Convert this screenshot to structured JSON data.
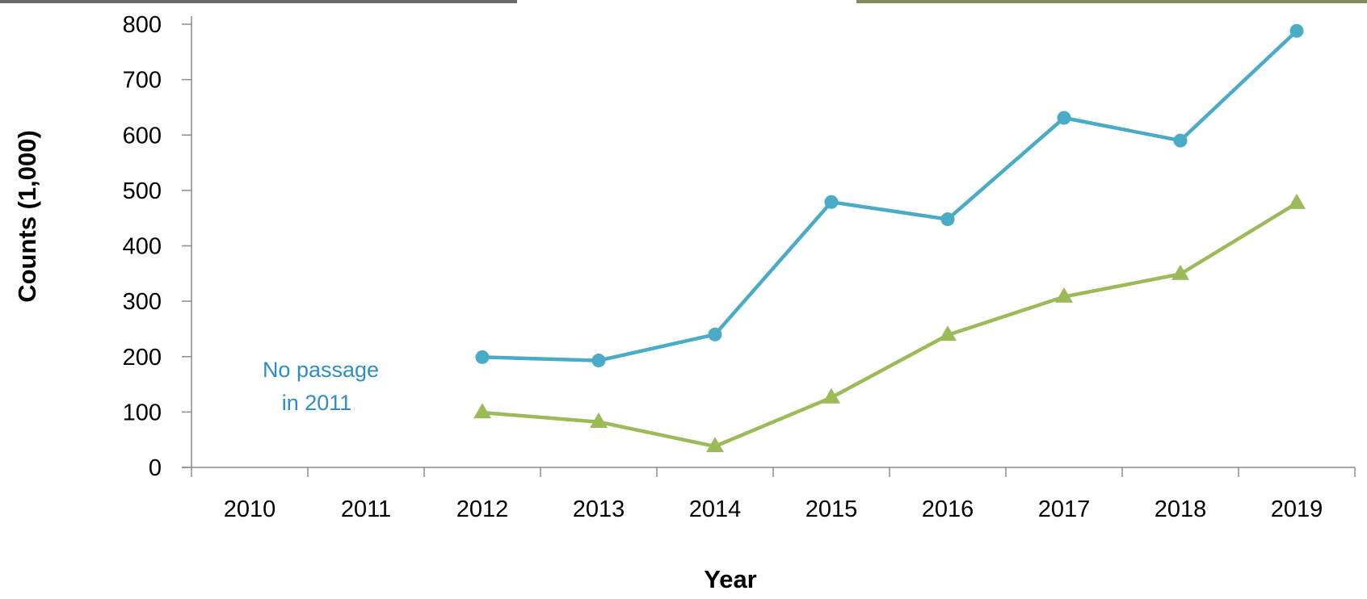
{
  "chart_data": {
    "type": "line",
    "xlabel": "Year",
    "ylabel": "Counts (1,000)",
    "categories": [
      "2010",
      "2011",
      "2012",
      "2013",
      "2014",
      "2015",
      "2016",
      "2017",
      "2018",
      "2019"
    ],
    "ylim": [
      0,
      800
    ],
    "yticks": [
      0,
      100,
      200,
      300,
      400,
      500,
      600,
      700,
      800
    ],
    "grid": false,
    "legend": "none",
    "series": [
      {
        "color": "#4aabc6",
        "marker": "circle",
        "values": [
          null,
          null,
          199,
          193,
          240,
          479,
          448,
          631,
          590,
          788
        ]
      },
      {
        "color": "#9bbb59",
        "marker": "triangle",
        "values": [
          null,
          null,
          99,
          82,
          38,
          126,
          239,
          308,
          349,
          477
        ]
      }
    ],
    "annotations": [
      {
        "text_line1": "No passage",
        "text_line2": "in 2011",
        "color": "#2e8ec4",
        "x": "2011",
        "y": 165
      }
    ]
  },
  "decor": {
    "photo_left_color": "#6f6a63",
    "photo_right_color": "#7d8d5c"
  }
}
